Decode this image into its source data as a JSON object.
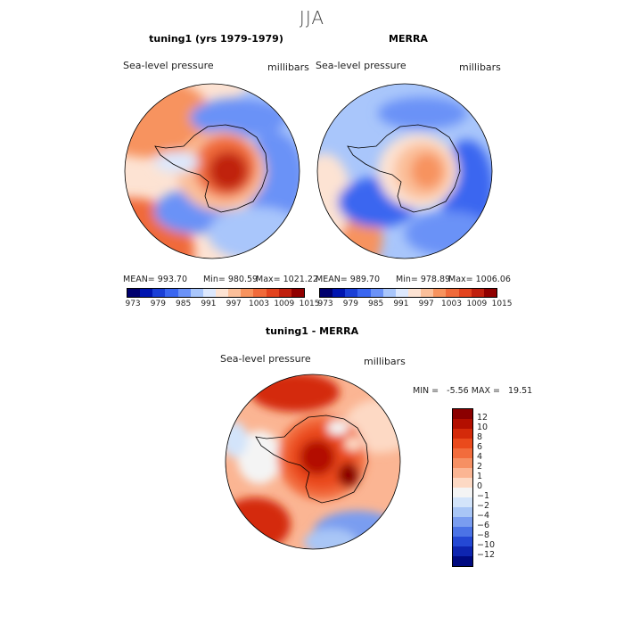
{
  "title": "JJA",
  "panels": [
    {
      "title": "tuning1 (yrs 1979-1979)",
      "field": "Sea-level pressure",
      "units": "millibars",
      "mean": "MEAN= 993.70",
      "min": "Min= 980.59",
      "max": "Max= 1021.22"
    },
    {
      "title": "MERRA",
      "field": "Sea-level pressure",
      "units": "millibars",
      "mean": "MEAN= 989.70",
      "min": "Min= 978.89",
      "max": "Max= 1006.06"
    },
    {
      "title": "tuning1 - MERRA",
      "field": "Sea-level pressure",
      "units": "millibars",
      "minmax": "MIN =   -5.56 MAX =   19.51"
    }
  ],
  "chart_data": [
    {
      "type": "heatmap",
      "title": "tuning1 (yrs 1979-1979)",
      "projection": "south polar stereographic",
      "variable": "Sea-level pressure",
      "units": "millibars",
      "mean": 993.7,
      "min": 980.59,
      "max": 1021.22,
      "colorbar_ticks": [
        "973",
        "979",
        "985",
        "991",
        "997",
        "1003",
        "1009",
        "1015"
      ],
      "colorbar_colors": [
        "#00006e",
        "#0015b0",
        "#1a3fd6",
        "#3a66f0",
        "#6b92f7",
        "#a9c6fb",
        "#dde8fd",
        "#fde3d3",
        "#fbbf9a",
        "#f7935e",
        "#f06a3a",
        "#e2431e",
        "#c0200e",
        "#900000"
      ]
    },
    {
      "type": "heatmap",
      "title": "MERRA",
      "projection": "south polar stereographic",
      "variable": "Sea-level pressure",
      "units": "millibars",
      "mean": 989.7,
      "min": 978.89,
      "max": 1006.06,
      "colorbar_ticks": [
        "973",
        "979",
        "985",
        "991",
        "997",
        "1003",
        "1009",
        "1015"
      ],
      "colorbar_colors": [
        "#00006e",
        "#0015b0",
        "#1a3fd6",
        "#3a66f0",
        "#6b92f7",
        "#a9c6fb",
        "#dde8fd",
        "#fde3d3",
        "#fbbf9a",
        "#f7935e",
        "#f06a3a",
        "#e2431e",
        "#c0200e",
        "#900000"
      ]
    },
    {
      "type": "heatmap",
      "title": "tuning1 - MERRA",
      "projection": "south polar stereographic",
      "variable": "Sea-level pressure",
      "units": "millibars",
      "min": -5.56,
      "max": 19.51,
      "colorbar_ticks": [
        "12",
        "10",
        "8",
        "6",
        "4",
        "2",
        "1",
        "0",
        "−1",
        "−2",
        "−4",
        "−6",
        "−8",
        "−10",
        "−12"
      ],
      "colorbar_colors": [
        "#8b0000",
        "#b30f00",
        "#d42a0a",
        "#ea4a1c",
        "#f26c3c",
        "#f69063",
        "#fbb593",
        "#fdd9c4",
        "#f4f4f4",
        "#d3e4fa",
        "#a9c6f6",
        "#7a9df0",
        "#4b73e6",
        "#2448d4",
        "#0e25b0",
        "#000a80"
      ]
    }
  ]
}
